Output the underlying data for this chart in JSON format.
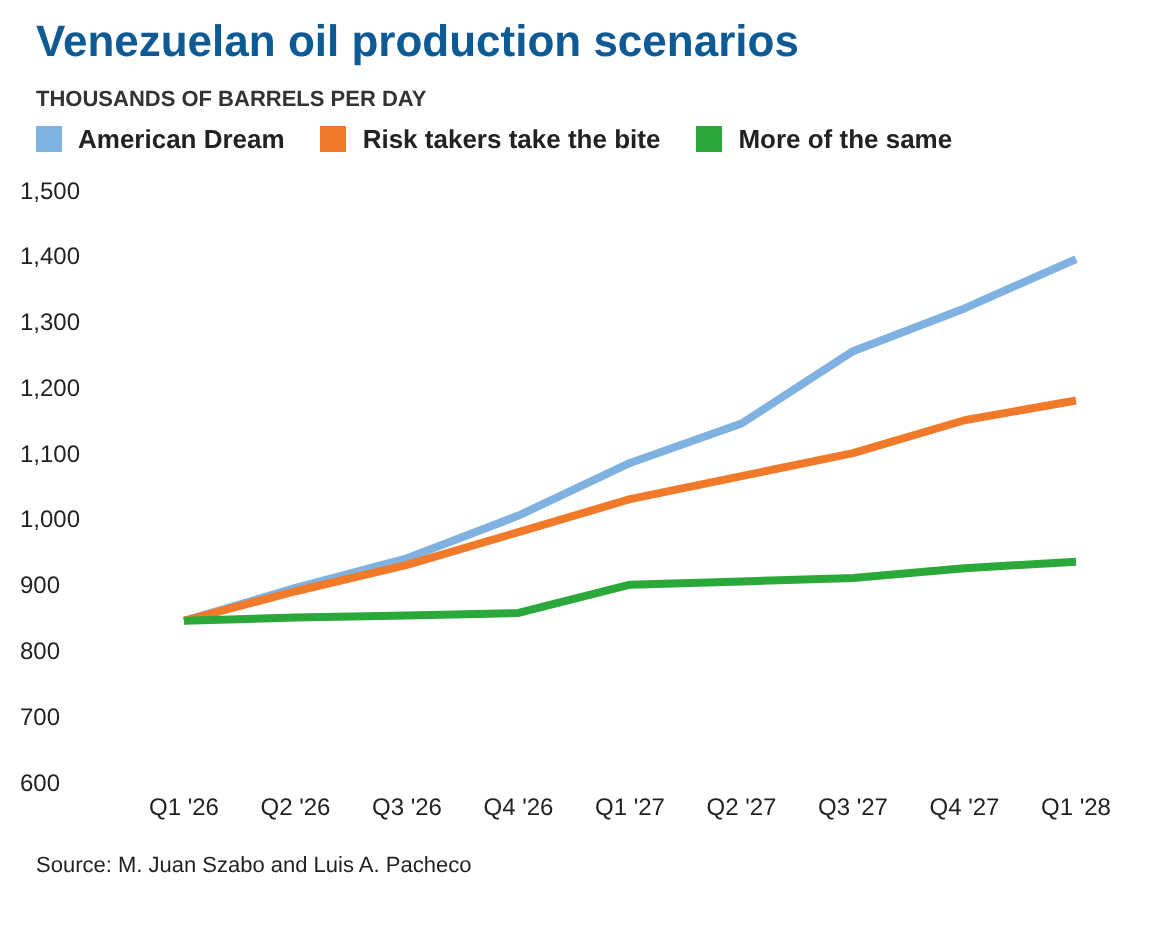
{
  "chart_data": {
    "type": "line",
    "title": "Venezuelan oil production scenarios",
    "subtitle": "THOUSANDS OF BARRELS PER DAY",
    "categories": [
      "Q1 '26",
      "Q2 '26",
      "Q3 '26",
      "Q4 '26",
      "Q1 '27",
      "Q2 '27",
      "Q3 '27",
      "Q4 '27",
      "Q1 '28"
    ],
    "series": [
      {
        "name": "American Dream",
        "color": "#7fb2e0",
        "values": [
          845,
          895,
          940,
          1005,
          1085,
          1145,
          1255,
          1320,
          1395
        ]
      },
      {
        "name": "Risk takers take the bite",
        "color": "#f07a2a",
        "values": [
          845,
          890,
          930,
          980,
          1030,
          1065,
          1100,
          1150,
          1180
        ]
      },
      {
        "name": "More of the same",
        "color": "#2aa83a",
        "values": [
          845,
          850,
          853,
          857,
          900,
          905,
          910,
          925,
          935
        ]
      }
    ],
    "ylim": [
      600,
      1500
    ],
    "yticks": [
      {
        "value": 600,
        "label": "600"
      },
      {
        "value": 700,
        "label": "700"
      },
      {
        "value": 800,
        "label": "800"
      },
      {
        "value": 900,
        "label": "900"
      },
      {
        "value": 1000,
        "label": "1,000"
      },
      {
        "value": 1100,
        "label": "1,100"
      },
      {
        "value": 1200,
        "label": "1,200"
      },
      {
        "value": 1300,
        "label": "1,300"
      },
      {
        "value": 1400,
        "label": "1,400"
      },
      {
        "value": 1500,
        "label": "1,500"
      }
    ],
    "grid": false,
    "legend": "top left",
    "marker": "none",
    "line_style": "solid",
    "annotations": [
      "Source: M. Juan Szabo and Luis A. Pacheco"
    ]
  }
}
